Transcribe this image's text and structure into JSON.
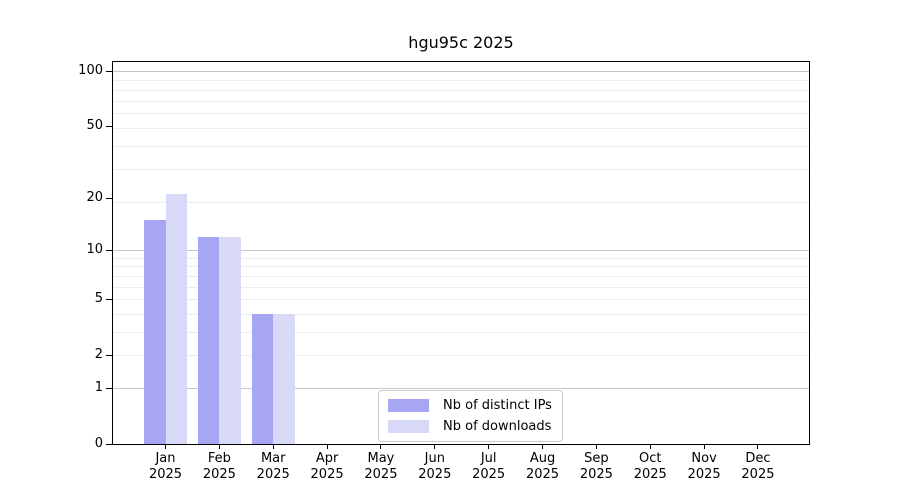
{
  "title": "hgu95c 2025",
  "chart_data": {
    "type": "bar",
    "title": "hgu95c 2025",
    "categories": [
      "Jan",
      "Feb",
      "Mar",
      "Apr",
      "May",
      "Jun",
      "Jul",
      "Aug",
      "Sep",
      "Oct",
      "Nov",
      "Dec"
    ],
    "x_year_label": "2025",
    "series": [
      {
        "name": "Nb of distinct IPs",
        "color": "#a6a6f2",
        "values": [
          15,
          12,
          4,
          0,
          0,
          0,
          0,
          0,
          0,
          0,
          0,
          0
        ]
      },
      {
        "name": "Nb of downloads",
        "color": "#d8d8f7",
        "values": [
          21,
          12,
          4,
          0,
          0,
          0,
          0,
          0,
          0,
          0,
          0,
          0
        ]
      }
    ],
    "y_axis": {
      "scale": "log10(1+value)",
      "ylim": [
        0,
        112
      ],
      "tick_values": [
        100,
        50,
        20,
        10,
        5,
        2,
        1,
        0
      ]
    },
    "gridlines": {
      "major_values": [
        1,
        10,
        100
      ],
      "minor_values": [
        2,
        3,
        4,
        5,
        6,
        7,
        8,
        9,
        19,
        29,
        39,
        49,
        59,
        69,
        79,
        89
      ],
      "major_color": "#c6c6c6",
      "minor_color": "#ededed"
    },
    "legend": {
      "position": "lower center"
    },
    "colors": {
      "background": "#ffffff",
      "axis": "#000000",
      "text": "#000000"
    }
  }
}
